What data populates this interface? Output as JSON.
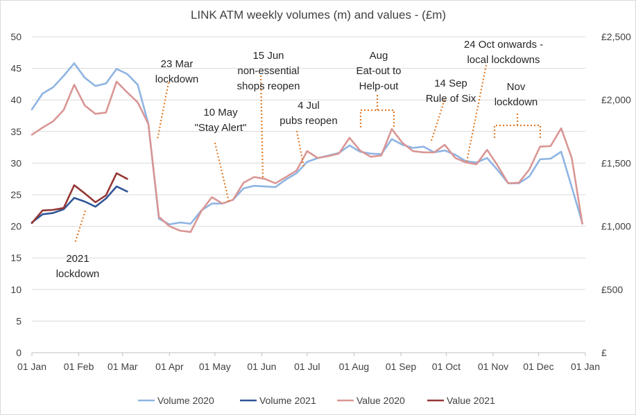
{
  "chart_data": {
    "type": "line",
    "title": "LINK ATM weekly volumes (m) and values - (£m)",
    "x_ticks": [
      "01 Jan",
      "01 Feb",
      "01 Mar",
      "01 Apr",
      "01 May",
      "01 Jun",
      "01 Jul",
      "01 Aug",
      "01 Sep",
      "01 Oct",
      "01 Nov",
      "01 Dec",
      "01 Jan"
    ],
    "x_tick_days": [
      0,
      31,
      60,
      91,
      121,
      152,
      182,
      213,
      244,
      274,
      305,
      335,
      366
    ],
    "y_left": {
      "ylim": [
        0,
        50
      ],
      "ticks": [
        "0",
        "5",
        "10",
        "15",
        "20",
        "25",
        "30",
        "35",
        "40",
        "45",
        "50"
      ]
    },
    "y_right": {
      "ylim": [
        0,
        2500
      ],
      "ticks": [
        "£",
        "£500",
        "£1,000",
        "£1,500",
        "£2,000",
        "£2,500"
      ]
    },
    "grid": true,
    "legend_position": "bottom",
    "series": [
      {
        "name": "Volume 2020",
        "axis": "left",
        "color": "#8eb4e3",
        "x": [
          0,
          7,
          14,
          21,
          28,
          35,
          42,
          49,
          56,
          63,
          70,
          77,
          84,
          91,
          98,
          105,
          112,
          119,
          126,
          133,
          140,
          147,
          154,
          161,
          168,
          175,
          182,
          189,
          196,
          203,
          210,
          217,
          224,
          231,
          238,
          245,
          252,
          259,
          266,
          273,
          280,
          287,
          294,
          301,
          308,
          315,
          322,
          329,
          336,
          343,
          350,
          357,
          364
        ],
        "y": [
          38.5,
          41,
          42,
          43.8,
          45.8,
          43.5,
          42.2,
          42.6,
          44.9,
          44.1,
          42.4,
          36.2,
          21.2,
          20.3,
          20.6,
          20.4,
          22.5,
          23.6,
          23.6,
          24.2,
          26.0,
          26.4,
          26.3,
          26.2,
          27.4,
          28.4,
          30.2,
          30.8,
          31.2,
          31.6,
          32.8,
          31.8,
          31.5,
          31.4,
          33.8,
          32.9,
          32.4,
          32.6,
          31.7,
          32.0,
          31.3,
          30.3,
          30.1,
          30.8,
          28.9,
          26.8,
          26.8,
          27.9,
          30.6,
          30.7,
          31.8,
          26.2,
          20.5
        ]
      },
      {
        "name": "Volume 2021",
        "axis": "left",
        "color": "#2f5597",
        "x": [
          0,
          7,
          14,
          21,
          28,
          35,
          42,
          49,
          56,
          63
        ],
        "y": [
          20.6,
          21.9,
          22.1,
          22.7,
          24.5,
          23.9,
          23.1,
          24.4,
          26.3,
          25.5
        ]
      },
      {
        "name": "Value 2020",
        "axis": "right",
        "color": "#d99694",
        "x": [
          0,
          7,
          14,
          21,
          28,
          35,
          42,
          49,
          56,
          63,
          70,
          77,
          84,
          91,
          98,
          105,
          112,
          119,
          126,
          133,
          140,
          147,
          154,
          161,
          168,
          175,
          182,
          189,
          196,
          203,
          210,
          217,
          224,
          231,
          238,
          245,
          252,
          259,
          266,
          273,
          280,
          287,
          294,
          301,
          308,
          315,
          322,
          329,
          336,
          343,
          350,
          357,
          364
        ],
        "y": [
          1725,
          1780,
          1830,
          1920,
          2120,
          1955,
          1890,
          1900,
          2145,
          2060,
          1980,
          1810,
          1075,
          1000,
          965,
          955,
          1120,
          1230,
          1180,
          1210,
          1345,
          1390,
          1375,
          1340,
          1390,
          1440,
          1595,
          1540,
          1555,
          1575,
          1700,
          1600,
          1550,
          1560,
          1770,
          1660,
          1595,
          1585,
          1585,
          1645,
          1540,
          1505,
          1490,
          1605,
          1480,
          1340,
          1345,
          1450,
          1630,
          1635,
          1775,
          1540,
          1020
        ]
      },
      {
        "name": "Value 2021",
        "axis": "right",
        "color": "#953735",
        "x": [
          0,
          7,
          14,
          21,
          28,
          35,
          42,
          49,
          56,
          63
        ],
        "y": [
          1025,
          1125,
          1130,
          1145,
          1325,
          1260,
          1190,
          1245,
          1420,
          1375
        ]
      }
    ],
    "annotations": [
      {
        "lines": [
          "23 Mar",
          "lockdown"
        ]
      },
      {
        "lines": [
          "10 May",
          "\"Stay Alert\""
        ]
      },
      {
        "lines": [
          "15 Jun",
          "non-essential",
          "shops reopen"
        ]
      },
      {
        "lines": [
          "4 Jul",
          "pubs reopen"
        ]
      },
      {
        "lines": [
          "Aug",
          "Eat-out to",
          "Help-out"
        ]
      },
      {
        "lines": [
          "14 Sep",
          "Rule of Six"
        ]
      },
      {
        "lines": [
          "24 Oct onwards -",
          "local lockdowns"
        ]
      },
      {
        "lines": [
          "Nov",
          "lockdown"
        ]
      },
      {
        "lines": [
          "2021",
          "lockdown"
        ]
      }
    ]
  }
}
